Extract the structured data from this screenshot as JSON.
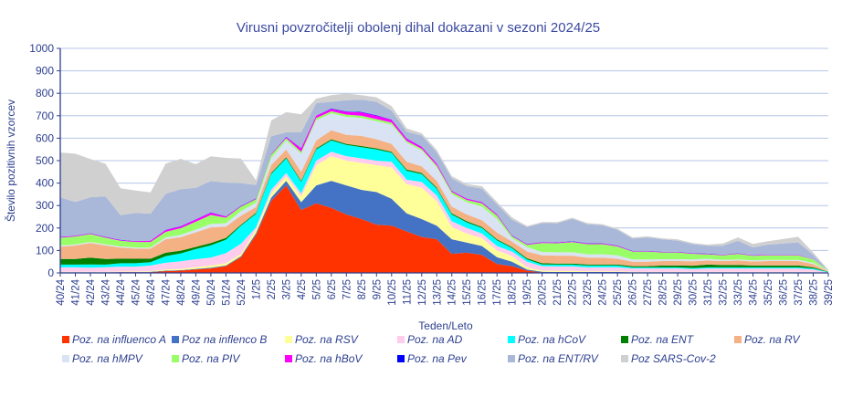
{
  "chart_data": {
    "type": "area",
    "stacked": true,
    "title": "Virusni povzročitelji  obolenj dihal dokazani v sezoni 2024/25",
    "xlabel": "Teden/Leto",
    "ylabel": "Število pozitivnih vzorcev",
    "ylim": [
      0,
      1000
    ],
    "yticks": [
      "0",
      "100",
      "200",
      "300",
      "400",
      "500",
      "600",
      "700",
      "800",
      "900",
      "1000"
    ],
    "grid": true,
    "legend_position": "bottom",
    "categories": [
      "40/24",
      "41/24",
      "42/24",
      "43/24",
      "44/24",
      "45/24",
      "46/24",
      "47/24",
      "48/24",
      "49/24",
      "50/24",
      "51/24",
      "52/24",
      "1/25",
      "2/25",
      "3/25",
      "4/25",
      "5/25",
      "6/25",
      "7/25",
      "8/25",
      "9/25",
      "10/25",
      "11/25",
      "12/25",
      "13/25",
      "14/25",
      "15/25",
      "16/25",
      "17/25",
      "18/25",
      "19/25",
      "20/25",
      "21/25",
      "22/25",
      "23/25",
      "24/25",
      "25/25",
      "26/25",
      "27/25",
      "28/25",
      "29/25",
      "30/25",
      "31/25",
      "32/25",
      "33/25",
      "34/25",
      "35/25",
      "36/25",
      "37/25",
      "38/25",
      "39/25"
    ],
    "series": [
      {
        "name": "Poz. na influenco A",
        "color": "#ff3300",
        "values": [
          2,
          2,
          2,
          2,
          3,
          3,
          3,
          8,
          10,
          15,
          20,
          30,
          70,
          170,
          320,
          390,
          280,
          310,
          290,
          260,
          240,
          215,
          210,
          185,
          160,
          150,
          85,
          90,
          80,
          40,
          30,
          10,
          2,
          2,
          2,
          2,
          2,
          2,
          2,
          2,
          2,
          2,
          2,
          2,
          2,
          2,
          2,
          2,
          2,
          2,
          2,
          0
        ]
      },
      {
        "name": "Poz na inflenco B",
        "color": "#4472c4",
        "values": [
          1,
          1,
          1,
          1,
          1,
          1,
          2,
          2,
          2,
          3,
          3,
          3,
          5,
          8,
          15,
          20,
          35,
          80,
          120,
          130,
          130,
          145,
          120,
          80,
          80,
          60,
          65,
          45,
          40,
          30,
          20,
          5,
          3,
          2,
          2,
          2,
          2,
          2,
          1,
          1,
          1,
          1,
          1,
          1,
          1,
          1,
          1,
          1,
          1,
          1,
          1,
          0
        ]
      },
      {
        "name": "Poz. na RSV",
        "color": "#ffff99",
        "values": [
          2,
          2,
          2,
          2,
          2,
          2,
          3,
          5,
          5,
          8,
          10,
          10,
          10,
          15,
          20,
          20,
          25,
          90,
          110,
          110,
          120,
          120,
          140,
          130,
          140,
          110,
          55,
          40,
          35,
          30,
          25,
          10,
          5,
          5,
          5,
          3,
          3,
          3,
          2,
          2,
          2,
          2,
          2,
          2,
          2,
          2,
          2,
          2,
          2,
          2,
          2,
          0
        ]
      },
      {
        "name": "Poz. na AD",
        "color": "#ffccee",
        "values": [
          20,
          20,
          18,
          20,
          22,
          22,
          25,
          30,
          35,
          35,
          35,
          45,
          45,
          10,
          15,
          15,
          15,
          20,
          20,
          20,
          20,
          20,
          25,
          20,
          25,
          25,
          25,
          25,
          20,
          20,
          20,
          25,
          20,
          20,
          20,
          18,
          18,
          18,
          15,
          15,
          15,
          15,
          12,
          15,
          15,
          15,
          15,
          15,
          15,
          15,
          10,
          2
        ]
      },
      {
        "name": "Poz. na hCoV",
        "color": "#00ffff",
        "values": [
          12,
          12,
          15,
          12,
          15,
          15,
          15,
          30,
          35,
          45,
          55,
          60,
          80,
          60,
          70,
          65,
          50,
          50,
          50,
          50,
          50,
          50,
          40,
          40,
          35,
          30,
          30,
          25,
          25,
          25,
          15,
          10,
          8,
          8,
          8,
          8,
          8,
          8,
          5,
          5,
          5,
          5,
          5,
          5,
          5,
          5,
          5,
          5,
          5,
          5,
          5,
          2
        ]
      },
      {
        "name": "Poz. na ENT",
        "color": "#008000",
        "values": [
          25,
          25,
          30,
          25,
          20,
          20,
          15,
          15,
          12,
          10,
          10,
          8,
          5,
          5,
          5,
          5,
          5,
          5,
          5,
          5,
          5,
          5,
          5,
          5,
          5,
          5,
          5,
          5,
          5,
          5,
          5,
          5,
          5,
          5,
          5,
          5,
          5,
          5,
          5,
          5,
          8,
          8,
          10,
          12,
          10,
          10,
          8,
          8,
          8,
          8,
          5,
          1
        ]
      },
      {
        "name": "Poz. na RV",
        "color": "#f4b183",
        "values": [
          55,
          60,
          65,
          60,
          50,
          45,
          45,
          60,
          60,
          65,
          70,
          50,
          40,
          25,
          35,
          35,
          40,
          35,
          40,
          40,
          45,
          40,
          35,
          35,
          30,
          30,
          30,
          30,
          30,
          30,
          25,
          30,
          35,
          35,
          35,
          30,
          30,
          25,
          20,
          20,
          20,
          20,
          20,
          18,
          18,
          20,
          18,
          20,
          20,
          20,
          15,
          2
        ]
      },
      {
        "name": "Poz. na hMPV",
        "color": "#dae3f3",
        "values": [
          5,
          5,
          5,
          5,
          5,
          5,
          5,
          8,
          10,
          12,
          15,
          15,
          20,
          20,
          30,
          40,
          80,
          90,
          75,
          80,
          80,
          80,
          85,
          85,
          70,
          60,
          55,
          55,
          60,
          60,
          15,
          20,
          15,
          15,
          15,
          15,
          15,
          15,
          10,
          10,
          8,
          8,
          8,
          8,
          5,
          5,
          5,
          5,
          5,
          5,
          5,
          2
        ]
      },
      {
        "name": "Poz. na PIV",
        "color": "#99ff66",
        "values": [
          35,
          35,
          35,
          30,
          25,
          25,
          25,
          25,
          30,
          35,
          40,
          25,
          20,
          15,
          15,
          10,
          10,
          10,
          10,
          10,
          10,
          10,
          10,
          8,
          8,
          8,
          10,
          10,
          15,
          15,
          8,
          10,
          40,
          40,
          45,
          45,
          45,
          40,
          35,
          35,
          30,
          30,
          25,
          20,
          20,
          25,
          20,
          20,
          20,
          20,
          15,
          1
        ]
      },
      {
        "name": "Poz. na hBoV",
        "color": "#ff00ff",
        "values": [
          3,
          3,
          3,
          3,
          3,
          3,
          5,
          8,
          8,
          10,
          10,
          5,
          3,
          3,
          3,
          5,
          15,
          10,
          10,
          12,
          15,
          15,
          12,
          10,
          8,
          8,
          5,
          5,
          5,
          5,
          3,
          3,
          3,
          3,
          3,
          3,
          3,
          3,
          2,
          2,
          2,
          2,
          2,
          2,
          2,
          2,
          2,
          2,
          2,
          2,
          1,
          0
        ]
      },
      {
        "name": "Poz. na Pev",
        "color": "#0000ff",
        "values": [
          1,
          1,
          1,
          1,
          1,
          1,
          1,
          1,
          1,
          1,
          1,
          1,
          1,
          1,
          1,
          1,
          1,
          1,
          2,
          2,
          2,
          2,
          1,
          1,
          1,
          1,
          1,
          1,
          1,
          1,
          1,
          1,
          1,
          1,
          1,
          1,
          1,
          1,
          1,
          1,
          1,
          1,
          1,
          1,
          1,
          1,
          1,
          1,
          1,
          1,
          0,
          0
        ]
      },
      {
        "name": "Poz. na ENT/RV",
        "color": "#a9b8d9",
        "values": [
          175,
          150,
          160,
          180,
          110,
          125,
          120,
          160,
          165,
          140,
          140,
          150,
          100,
          60,
          80,
          20,
          70,
          55,
          30,
          50,
          55,
          60,
          40,
          30,
          50,
          50,
          55,
          55,
          60,
          45,
          70,
          75,
          85,
          85,
          100,
          85,
          80,
          70,
          55,
          60,
          55,
          50,
          40,
          35,
          40,
          55,
          35,
          45,
          50,
          55,
          20,
          1
        ]
      },
      {
        "name": "Poz  SARS-Cov-2",
        "color": "#d0d0d0",
        "values": [
          200,
          215,
          170,
          145,
          120,
          100,
          95,
          135,
          135,
          105,
          110,
          110,
          110,
          20,
          70,
          90,
          80,
          20,
          30,
          30,
          20,
          20,
          20,
          15,
          10,
          10,
          10,
          10,
          10,
          10,
          10,
          5,
          5,
          5,
          5,
          5,
          5,
          5,
          5,
          5,
          5,
          5,
          5,
          5,
          10,
          15,
          15,
          15,
          20,
          25,
          10,
          2
        ]
      }
    ]
  }
}
